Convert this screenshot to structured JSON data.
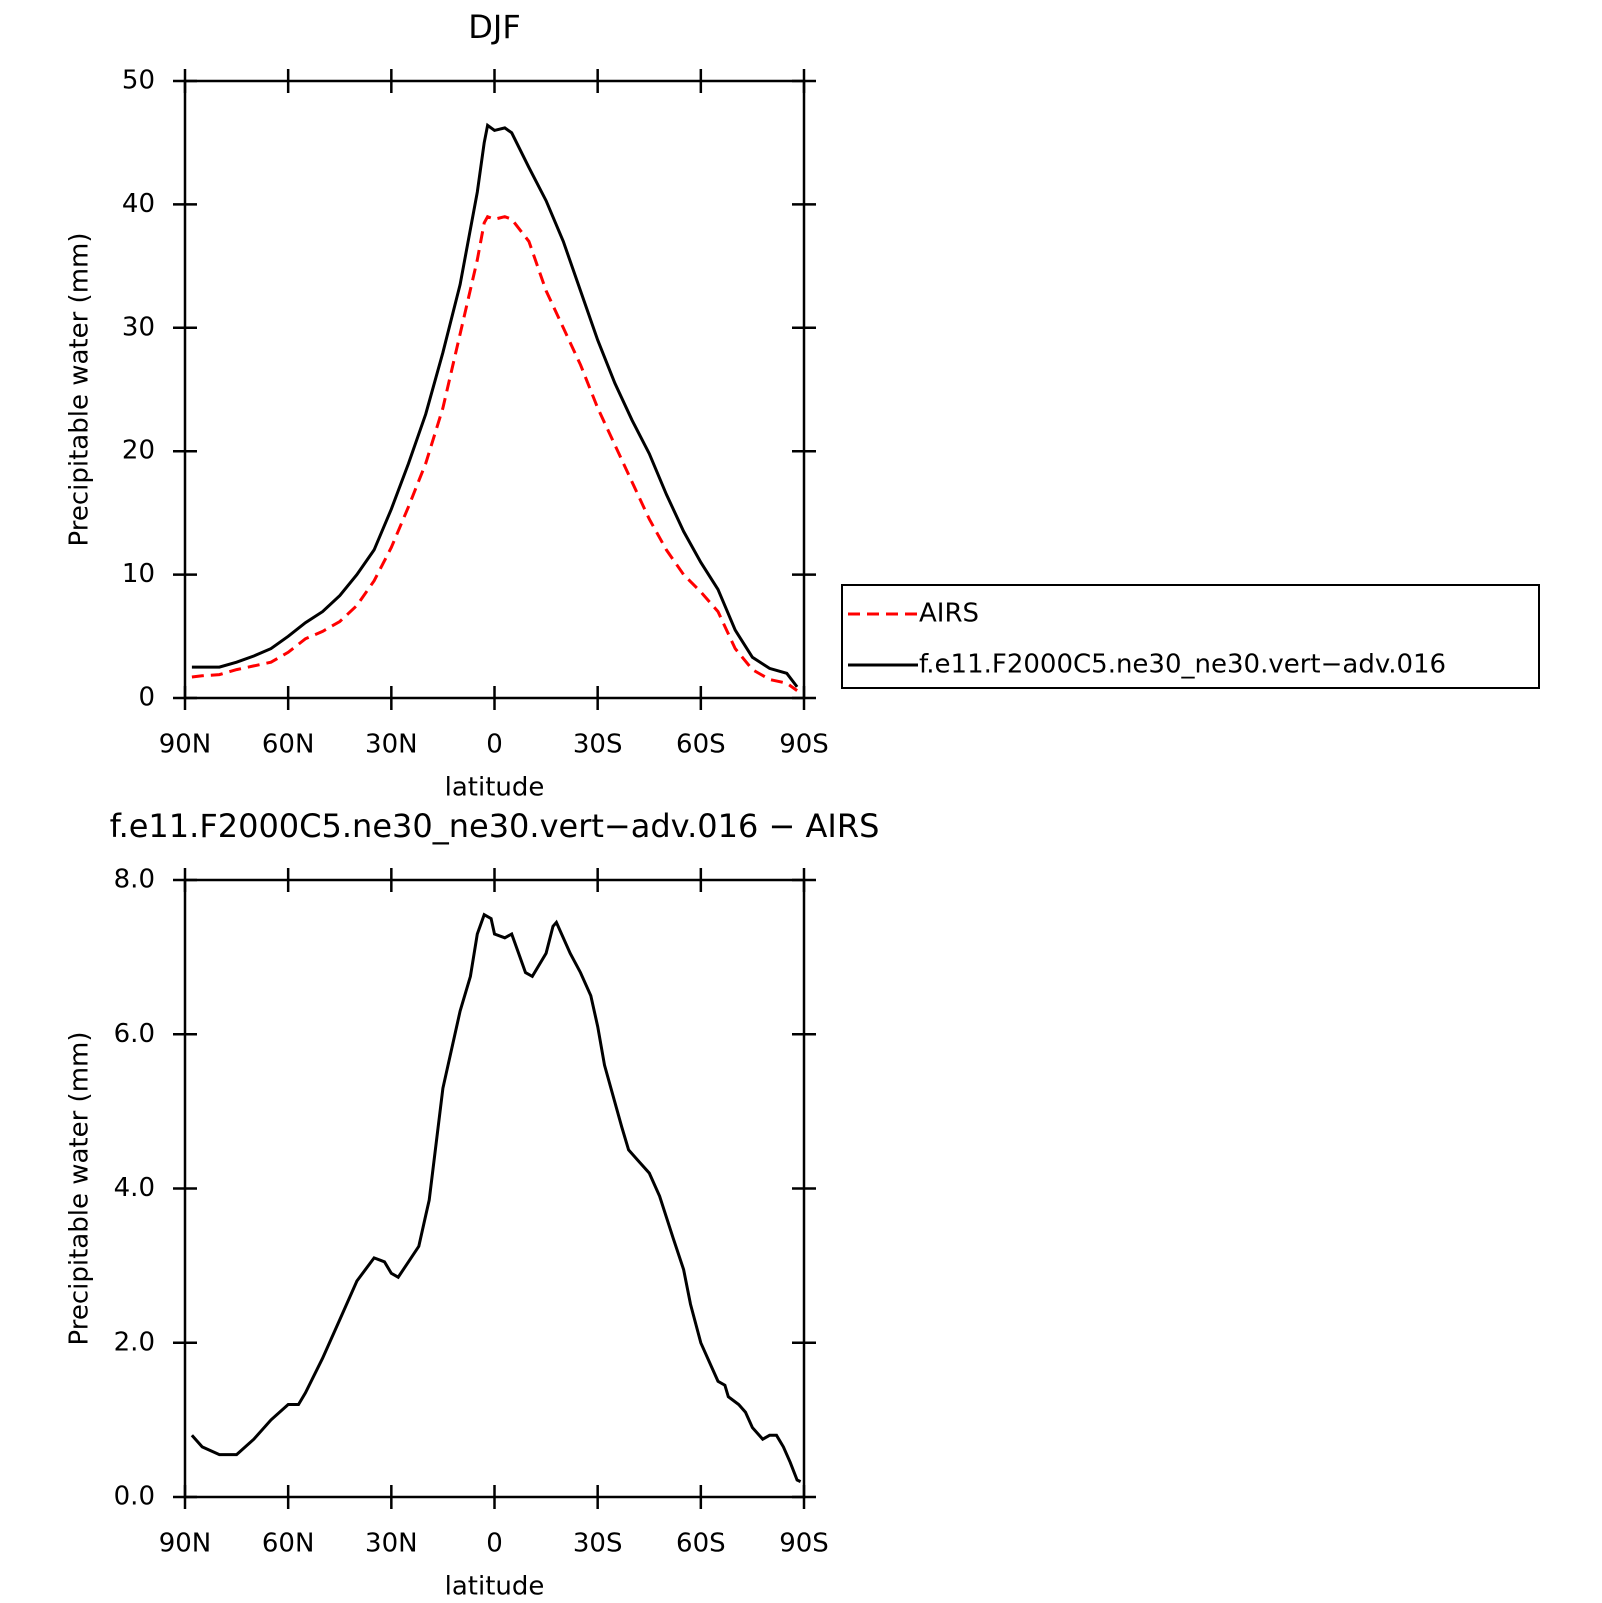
{
  "chart_data": [
    {
      "type": "line",
      "title": "DJF",
      "x_label": "latitude",
      "y_label": "Precipitable water (mm)",
      "x": [
        88,
        85,
        80,
        75,
        70,
        65,
        60,
        55,
        50,
        45,
        40,
        35,
        30,
        25,
        20,
        15,
        10,
        5,
        3,
        2,
        0,
        -3,
        -5,
        -10,
        -15,
        -20,
        -25,
        -30,
        -35,
        -40,
        -45,
        -50,
        -55,
        -60,
        -65,
        -70,
        -75,
        -80,
        -85,
        -88
      ],
      "series": [
        {
          "name": "AIRS",
          "color": "#ff0000",
          "dashed": true,
          "values": [
            1.7,
            1.8,
            1.9,
            2.3,
            2.6,
            2.9,
            3.7,
            4.8,
            5.4,
            6.2,
            7.5,
            9.5,
            12.2,
            15.5,
            19,
            23.5,
            29.5,
            35.5,
            38.5,
            39,
            38.8,
            39,
            38.8,
            37,
            33,
            30,
            27,
            23.5,
            20.5,
            17.5,
            14.5,
            12,
            10,
            8.6,
            7,
            4,
            2.3,
            1.5,
            1.2,
            0.6
          ]
        },
        {
          "name": "f.e11.F2000C5.ne30_ne30.vert−adv.016",
          "color": "#000000",
          "dashed": false,
          "values": [
            2.5,
            2.5,
            2.5,
            2.9,
            3.4,
            4.0,
            5.0,
            6.1,
            7.0,
            8.3,
            10.0,
            12.0,
            15.3,
            19.0,
            23.0,
            28.0,
            33.5,
            41.0,
            45.0,
            46.4,
            46.0,
            46.2,
            45.8,
            43.0,
            40.3,
            37.0,
            33.0,
            29.0,
            25.5,
            22.5,
            19.8,
            16.5,
            13.5,
            11.0,
            8.8,
            5.5,
            3.3,
            2.4,
            2.0,
            0.9
          ]
        }
      ],
      "xlim": [
        90,
        -90
      ],
      "xticks": [
        {
          "value": 90,
          "label": "90N"
        },
        {
          "value": 60,
          "label": "60N"
        },
        {
          "value": 30,
          "label": "30N"
        },
        0,
        {
          "value": -30,
          "label": "30S"
        },
        {
          "value": -60,
          "label": "60S"
        },
        {
          "value": -90,
          "label": "90S"
        }
      ],
      "ylim": [
        0,
        50
      ],
      "yticks": [
        0,
        10,
        20,
        30,
        40,
        50
      ],
      "legend": "right"
    },
    {
      "type": "line",
      "title": "f.e11.F2000C5.ne30_ne30.vert−adv.016 − AIRS",
      "x_label": "latitude",
      "y_label": "Precipitable water (mm)",
      "x": [
        88,
        85,
        80,
        75,
        70,
        65,
        60,
        57,
        55,
        50,
        45,
        40,
        35,
        32,
        30,
        28,
        25,
        22,
        20,
        19,
        15,
        10,
        7,
        5,
        3,
        1,
        0,
        -3,
        -5,
        -7,
        -9,
        -11,
        -15,
        -17,
        -18,
        -22,
        -25,
        -28,
        -30,
        -32,
        -37,
        -39,
        -42,
        -45,
        -48,
        -52,
        -55,
        -57,
        -60,
        -63,
        -65,
        -67,
        -68,
        -71,
        -73,
        -75,
        -78,
        -80,
        -82,
        -84,
        -86,
        -88,
        -89
      ],
      "values": [
        0.8,
        0.65,
        0.55,
        0.55,
        0.75,
        1.0,
        1.2,
        1.2,
        1.35,
        1.8,
        2.3,
        2.8,
        3.1,
        3.05,
        2.9,
        2.85,
        3.05,
        3.25,
        3.65,
        3.85,
        5.3,
        6.3,
        6.75,
        7.3,
        7.55,
        7.5,
        7.3,
        7.25,
        7.3,
        7.05,
        6.8,
        6.75,
        7.05,
        7.4,
        7.45,
        7.05,
        6.8,
        6.5,
        6.1,
        5.6,
        4.8,
        4.5,
        4.35,
        4.2,
        3.9,
        3.35,
        2.95,
        2.5,
        2.0,
        1.7,
        1.5,
        1.45,
        1.3,
        1.2,
        1.1,
        0.9,
        0.75,
        0.8,
        0.8,
        0.65,
        0.45,
        0.22,
        0.2
      ],
      "color": "#000000",
      "xlim": [
        90,
        -90
      ],
      "xticks": [
        {
          "value": 90,
          "label": "90N"
        },
        {
          "value": 60,
          "label": "60N"
        },
        {
          "value": 30,
          "label": "30N"
        },
        0,
        {
          "value": -30,
          "label": "30S"
        },
        {
          "value": -60,
          "label": "60S"
        },
        {
          "value": -90,
          "label": "90S"
        }
      ],
      "ylim": [
        0,
        8
      ],
      "yticks": [
        {
          "value": 0,
          "label": "0.0"
        },
        {
          "value": 2,
          "label": "2.0"
        },
        {
          "value": 4,
          "label": "4.0"
        },
        {
          "value": 6,
          "label": "6.0"
        },
        {
          "value": 8,
          "label": "8.0"
        }
      ]
    }
  ]
}
